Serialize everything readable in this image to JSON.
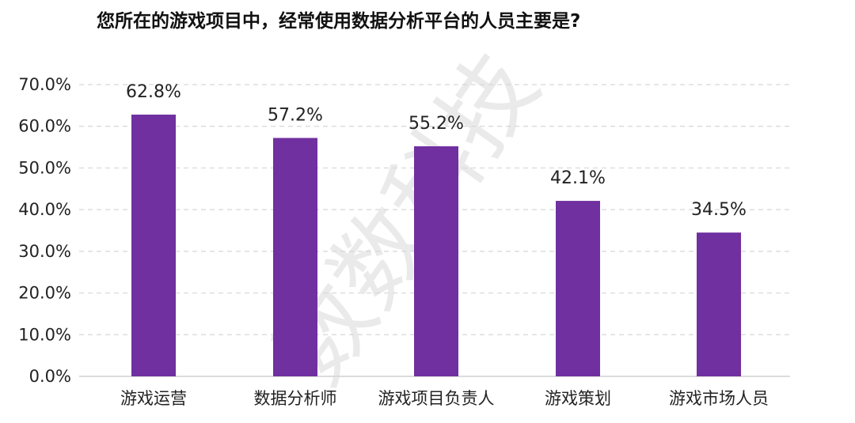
{
  "chart_data": {
    "type": "bar",
    "title": "您所在的游戏项目中，经常使用数据分析平台的人员主要是?",
    "categories": [
      "游戏运营",
      "数据分析师",
      "游戏项目负责人",
      "游戏策划",
      "游戏市场人员"
    ],
    "values": [
      62.8,
      57.2,
      55.2,
      42.1,
      34.5
    ],
    "value_labels": [
      "62.8%",
      "57.2%",
      "55.2%",
      "42.1%",
      "34.5%"
    ],
    "yticks": [
      "0.0%",
      "10.0%",
      "20.0%",
      "30.0%",
      "40.0%",
      "50.0%",
      "60.0%",
      "70.0%"
    ],
    "ytick_values": [
      0,
      10,
      20,
      30,
      40,
      50,
      60,
      70
    ],
    "ylim": [
      0,
      70
    ],
    "xlabel": "",
    "ylabel": "",
    "grid": "horizontal dashed",
    "legend": "none",
    "bar_color": "#7030a0",
    "watermark": "数数科技"
  }
}
